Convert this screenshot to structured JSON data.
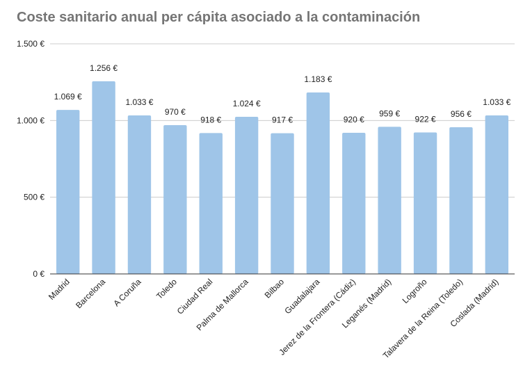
{
  "chart_data": {
    "type": "bar",
    "title": "Coste sanitario anual per cápita asociado a la contaminación",
    "xlabel": "",
    "ylabel": "",
    "categories": [
      "Madrid",
      "Barcelona",
      "A Coruña",
      "Toledo",
      "Ciudad Real",
      "Palma de Mallorca",
      "Bilbao",
      "Guadalajara",
      "Jerez de la Frontera (Cádiz)",
      "Leganés (Madrid)",
      "Logroño",
      "Talavera de la Reina (Toledo)",
      "Coslada (Madrid)"
    ],
    "values": [
      1069,
      1256,
      1033,
      970,
      918,
      1024,
      917,
      1183,
      920,
      959,
      922,
      956,
      1033
    ],
    "data_labels": [
      "1.069 €",
      "1.256 €",
      "1.033 €",
      "970 €",
      "918 €",
      "1.024 €",
      "917 €",
      "1.183 €",
      "920 €",
      "959 €",
      "922 €",
      "956 €",
      "1.033 €"
    ],
    "ylim": [
      0,
      1500
    ],
    "yticks": [
      0,
      500,
      1000,
      1500
    ],
    "ytick_labels": [
      "0 €",
      "500 €",
      "1.000 €",
      "1.500 €"
    ],
    "grid": true,
    "legend": "none",
    "colors": {
      "bar": "#9fc5e8",
      "grid": "#cccccc",
      "axis": "#333333"
    }
  }
}
